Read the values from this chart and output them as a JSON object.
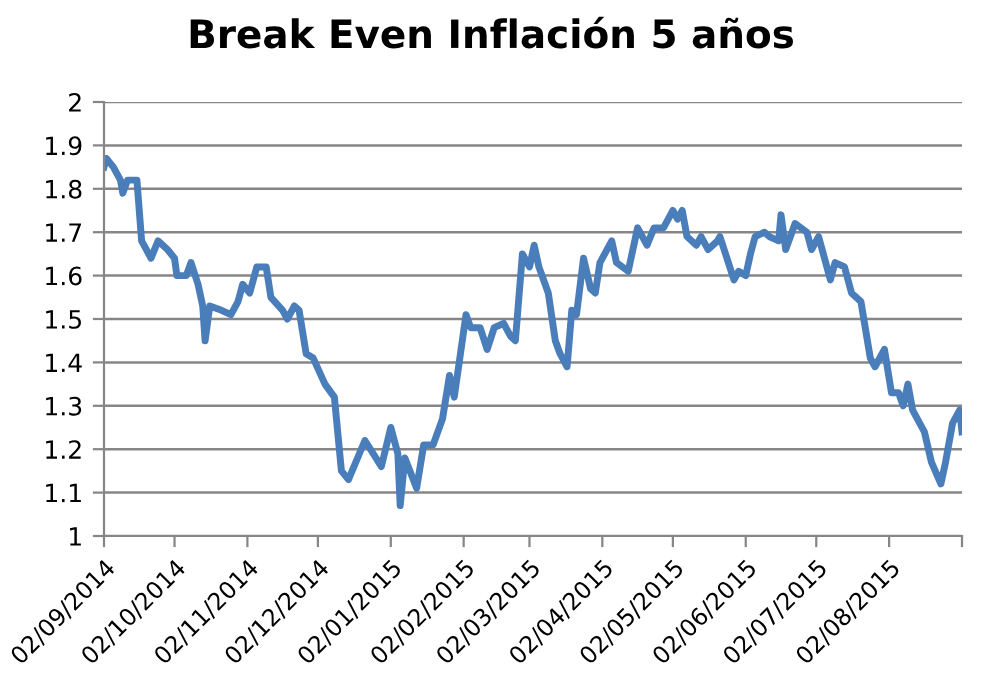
{
  "chart_data": {
    "type": "line",
    "title": "Break Even Inflación 5 años",
    "x": [
      "2014-09-02",
      "2014-09-03",
      "2014-09-06",
      "2014-09-09",
      "2014-09-10",
      "2014-09-12",
      "2014-09-16",
      "2014-09-18",
      "2014-09-22",
      "2014-09-25",
      "2014-09-29",
      "2014-10-02",
      "2014-10-03",
      "2014-10-07",
      "2014-10-09",
      "2014-10-12",
      "2014-10-14",
      "2014-10-15",
      "2014-10-17",
      "2014-10-22",
      "2014-10-26",
      "2014-10-29",
      "2014-10-31",
      "2014-11-03",
      "2014-11-06",
      "2014-11-10",
      "2014-11-12",
      "2014-11-17",
      "2014-11-19",
      "2014-11-22",
      "2014-11-24",
      "2014-11-27",
      "2014-11-30",
      "2014-12-05",
      "2014-12-09",
      "2014-12-12",
      "2014-12-15",
      "2014-12-22",
      "2014-12-29",
      "2015-01-02",
      "2015-01-05",
      "2015-01-06",
      "2015-01-08",
      "2015-01-13",
      "2015-01-16",
      "2015-01-20",
      "2015-01-24",
      "2015-01-27",
      "2015-01-29",
      "2015-02-03",
      "2015-02-05",
      "2015-02-09",
      "2015-02-12",
      "2015-02-15",
      "2015-02-19",
      "2015-02-22",
      "2015-02-24",
      "2015-02-27",
      "2015-03-02",
      "2015-03-04",
      "2015-03-06",
      "2015-03-10",
      "2015-03-13",
      "2015-03-15",
      "2015-03-18",
      "2015-03-20",
      "2015-03-22",
      "2015-03-25",
      "2015-03-28",
      "2015-03-30",
      "2015-04-01",
      "2015-04-06",
      "2015-04-08",
      "2015-04-13",
      "2015-04-17",
      "2015-04-21",
      "2015-04-24",
      "2015-04-28",
      "2015-05-02",
      "2015-05-04",
      "2015-05-06",
      "2015-05-08",
      "2015-05-12",
      "2015-05-14",
      "2015-05-17",
      "2015-05-21",
      "2015-05-22",
      "2015-05-28",
      "2015-05-30",
      "2015-06-02",
      "2015-06-04",
      "2015-06-06",
      "2015-06-10",
      "2015-06-12",
      "2015-06-16",
      "2015-06-17",
      "2015-06-19",
      "2015-06-23",
      "2015-06-28",
      "2015-06-30",
      "2015-07-03",
      "2015-07-08",
      "2015-07-10",
      "2015-07-14",
      "2015-07-17",
      "2015-07-21",
      "2015-07-25",
      "2015-07-27",
      "2015-07-31",
      "2015-08-03",
      "2015-08-06",
      "2015-08-08",
      "2015-08-10",
      "2015-08-12",
      "2015-08-17",
      "2015-08-20",
      "2015-08-24",
      "2015-08-26",
      "2015-08-29",
      "2015-09-01",
      "2015-09-02"
    ],
    "series": [
      {
        "color": "#4a7ebb",
        "values": [
          1.85,
          1.87,
          1.85,
          1.82,
          1.79,
          1.82,
          1.82,
          1.68,
          1.64,
          1.68,
          1.66,
          1.64,
          1.6,
          1.6,
          1.63,
          1.58,
          1.53,
          1.45,
          1.53,
          1.52,
          1.51,
          1.54,
          1.58,
          1.56,
          1.62,
          1.62,
          1.55,
          1.52,
          1.5,
          1.53,
          1.52,
          1.42,
          1.41,
          1.35,
          1.32,
          1.15,
          1.13,
          1.22,
          1.16,
          1.25,
          1.19,
          1.07,
          1.18,
          1.11,
          1.21,
          1.21,
          1.27,
          1.37,
          1.32,
          1.51,
          1.48,
          1.48,
          1.43,
          1.48,
          1.49,
          1.46,
          1.45,
          1.65,
          1.62,
          1.67,
          1.62,
          1.56,
          1.45,
          1.42,
          1.39,
          1.52,
          1.51,
          1.64,
          1.57,
          1.56,
          1.63,
          1.68,
          1.63,
          1.61,
          1.71,
          1.67,
          1.71,
          1.71,
          1.75,
          1.73,
          1.75,
          1.69,
          1.67,
          1.69,
          1.66,
          1.68,
          1.69,
          1.59,
          1.61,
          1.6,
          1.65,
          1.69,
          1.7,
          1.69,
          1.68,
          1.74,
          1.66,
          1.72,
          1.7,
          1.66,
          1.69,
          1.59,
          1.63,
          1.62,
          1.56,
          1.54,
          1.41,
          1.39,
          1.43,
          1.33,
          1.33,
          1.3,
          1.35,
          1.29,
          1.24,
          1.17,
          1.12,
          1.17,
          1.26,
          1.29,
          1.24
        ]
      }
    ],
    "xlim": [
      "2014-09-02",
      "2015-09-02"
    ],
    "xticks": [
      {
        "value": "2014-09-02",
        "label": "02/09/2014"
      },
      {
        "value": "2014-10-02",
        "label": "02/10/2014"
      },
      {
        "value": "2014-11-02",
        "label": "02/11/2014"
      },
      {
        "value": "2014-12-02",
        "label": "02/12/2014"
      },
      {
        "value": "2015-01-02",
        "label": "02/01/2015"
      },
      {
        "value": "2015-02-02",
        "label": "02/02/2015"
      },
      {
        "value": "2015-03-02",
        "label": "02/03/2015"
      },
      {
        "value": "2015-04-02",
        "label": "02/04/2015"
      },
      {
        "value": "2015-05-02",
        "label": "02/05/2015"
      },
      {
        "value": "2015-06-02",
        "label": "02/06/2015"
      },
      {
        "value": "2015-07-02",
        "label": "02/07/2015"
      },
      {
        "value": "2015-08-02",
        "label": "02/08/2015"
      },
      {
        "value": "2015-09-02",
        "label": null
      }
    ],
    "ylim": [
      1,
      2
    ],
    "yticks": [
      1,
      1.1,
      1.2,
      1.3,
      1.4,
      1.5,
      1.6,
      1.7,
      1.8,
      1.9,
      2
    ],
    "grid": "y",
    "legend": false,
    "marker": "none",
    "line_style": "solid"
  }
}
